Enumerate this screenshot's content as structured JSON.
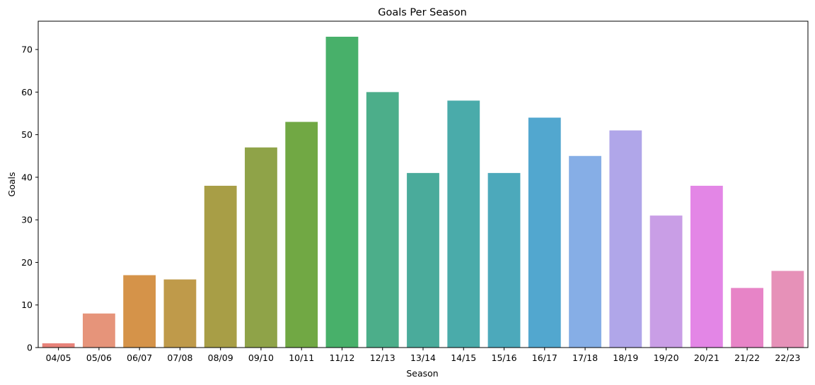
{
  "chart_data": {
    "type": "bar",
    "title": "Goals Per Season",
    "xlabel": "Season",
    "ylabel": "Goals",
    "categories": [
      "04/05",
      "05/06",
      "06/07",
      "07/08",
      "08/09",
      "09/10",
      "10/11",
      "11/12",
      "12/13",
      "13/14",
      "14/15",
      "15/16",
      "16/17",
      "17/18",
      "18/19",
      "19/20",
      "20/21",
      "21/22",
      "22/23"
    ],
    "values": [
      1,
      8,
      17,
      16,
      38,
      47,
      53,
      73,
      60,
      41,
      58,
      41,
      54,
      45,
      51,
      31,
      38,
      14,
      18
    ],
    "colors": [
      "#e8837a",
      "#e6947a",
      "#d59349",
      "#bf9a4a",
      "#a89e46",
      "#8fa348",
      "#71a844",
      "#48b06a",
      "#4cae8a",
      "#4aab9b",
      "#4aabaa",
      "#4ca9bb",
      "#52a7cf",
      "#86aee6",
      "#b0a6e9",
      "#c99ee6",
      "#e386e6",
      "#e784c7",
      "#e691b8"
    ],
    "ylim": [
      0,
      76.65
    ],
    "yticks": [
      0,
      10,
      20,
      30,
      40,
      50,
      60,
      70
    ],
    "grid": false,
    "legend": "none"
  }
}
